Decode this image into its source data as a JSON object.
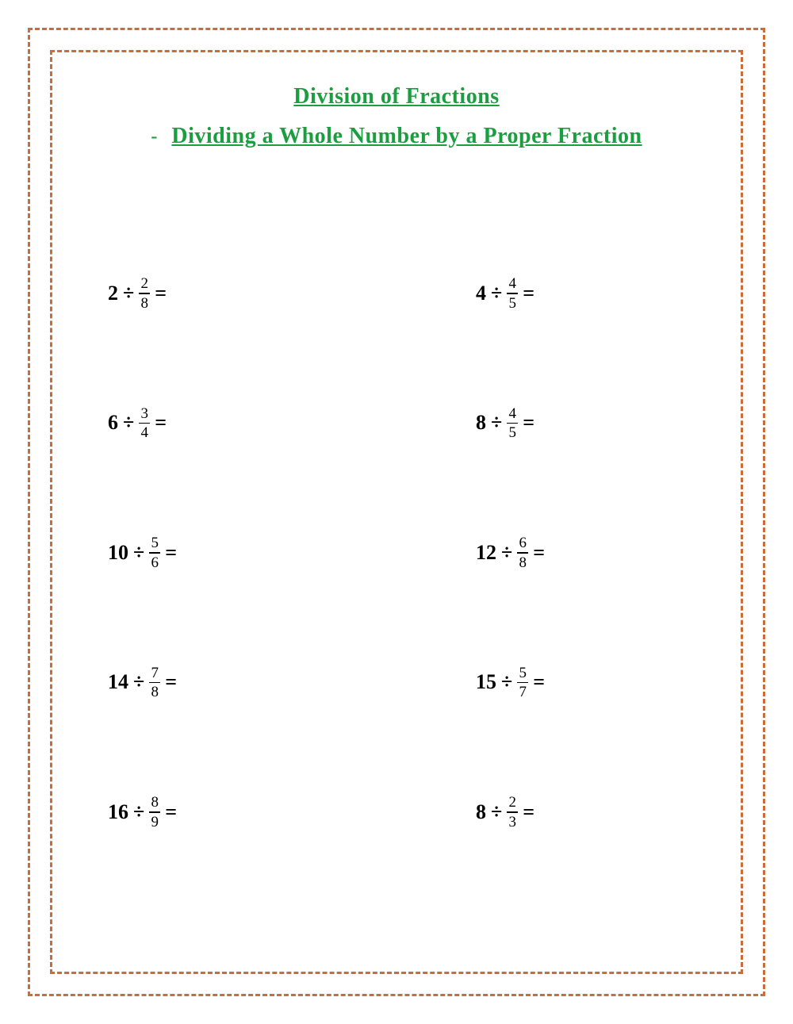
{
  "header": {
    "title": "Division of Fractions",
    "bullet": "-",
    "subtitle": "Dividing a Whole Number by a Proper Fraction"
  },
  "colors": {
    "border": "#c96e3a",
    "title": "#1a9e3f",
    "text": "#000000",
    "background": "#ffffff"
  },
  "typography": {
    "title_fontsize": 28,
    "whole_fontsize": 26,
    "fraction_fontsize": 19,
    "font_family": "Georgia, serif"
  },
  "symbols": {
    "divide": "÷",
    "equals": "="
  },
  "problems": [
    {
      "whole": "2",
      "numerator": "2",
      "denominator": "8",
      "col": "left"
    },
    {
      "whole": "4",
      "numerator": "4",
      "denominator": "5",
      "col": "right"
    },
    {
      "whole": "6",
      "numerator": "3",
      "denominator": "4",
      "col": "left"
    },
    {
      "whole": "8",
      "numerator": "4",
      "denominator": "5",
      "col": "right"
    },
    {
      "whole": "10",
      "numerator": "5",
      "denominator": "6",
      "col": "left"
    },
    {
      "whole": "12",
      "numerator": "6",
      "denominator": "8",
      "col": "right"
    },
    {
      "whole": "14",
      "numerator": "7",
      "denominator": "8",
      "col": "left"
    },
    {
      "whole": "15",
      "numerator": "5",
      "denominator": "7",
      "col": "right"
    },
    {
      "whole": "16",
      "numerator": "8",
      "denominator": "9",
      "col": "left"
    },
    {
      "whole": "8",
      "numerator": "2",
      "denominator": "3",
      "col": "right"
    }
  ]
}
